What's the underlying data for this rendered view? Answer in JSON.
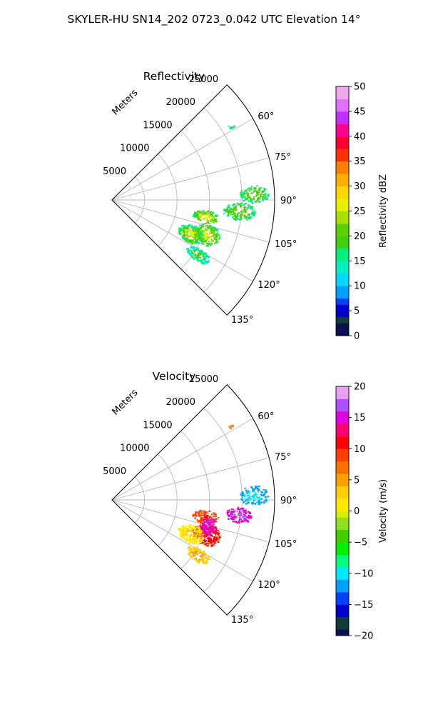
{
  "figure": {
    "suptitle": "SKYLER-HU  SN14_202  0723_0.042 UTC Elevation 14°"
  },
  "chart_data": [
    {
      "type": "ppi-sector",
      "title": "Reflectivity",
      "radial_label": "Meters",
      "radial_ticks": [
        5000,
        10000,
        15000,
        20000,
        25000
      ],
      "range_max_m": 25000,
      "azimuth_range_deg": [
        45,
        135
      ],
      "azimuth_ticks": [
        "60°",
        "75°",
        "90°",
        "105°",
        "120°",
        "135°"
      ],
      "colorbar": {
        "label": "Reflectivity dBZ",
        "range": [
          0,
          50
        ],
        "ticks": [
          "0",
          "5",
          "10",
          "15",
          "20",
          "25",
          "30",
          "35",
          "40",
          "45",
          "50"
        ]
      },
      "echo_regions": [
        {
          "az_range": [
            96,
            104
          ],
          "r_range": [
            12500,
            16500
          ],
          "value_range": [
            15,
            27
          ]
        },
        {
          "az_range": [
            104,
            116
          ],
          "r_range": [
            13000,
            17500
          ],
          "value_range": [
            15,
            25
          ]
        },
        {
          "az_range": [
            107,
            119
          ],
          "r_range": [
            11000,
            15000
          ],
          "value_range": [
            14,
            25
          ]
        },
        {
          "az_range": [
            119,
            126
          ],
          "r_range": [
            13500,
            17500
          ],
          "value_range": [
            12,
            20
          ]
        },
        {
          "az_range": [
            91,
            99
          ],
          "r_range": [
            17000,
            22000
          ],
          "value_range": [
            15,
            21
          ]
        },
        {
          "az_range": [
            84,
            91
          ],
          "r_range": [
            19500,
            24000
          ],
          "value_range": [
            15,
            21
          ]
        },
        {
          "az_range": [
            57,
            59
          ],
          "r_range": [
            21000,
            22000
          ],
          "value_range": [
            15,
            17
          ]
        }
      ]
    },
    {
      "type": "ppi-sector",
      "title": "Velocity",
      "radial_label": "Meters",
      "radial_ticks": [
        5000,
        10000,
        15000,
        20000,
        25000
      ],
      "range_max_m": 25000,
      "azimuth_range_deg": [
        45,
        135
      ],
      "azimuth_ticks": [
        "60°",
        "75°",
        "90°",
        "105°",
        "120°",
        "135°"
      ],
      "colorbar": {
        "label": "Velocity (m/s)",
        "range": [
          -20,
          20
        ],
        "ticks": [
          "−20",
          "−15",
          "−10",
          "−5",
          "0",
          "5",
          "10",
          "15",
          "20"
        ]
      },
      "echo_regions": [
        {
          "az_range": [
            96,
            104
          ],
          "r_range": [
            12500,
            16500
          ],
          "value_range": [
            8,
            10
          ]
        },
        {
          "az_range": [
            104,
            116
          ],
          "r_range": [
            13000,
            17500
          ],
          "value_range": [
            9,
            12
          ]
        },
        {
          "az_range": [
            100,
            110
          ],
          "r_range": [
            14000,
            16500
          ],
          "value_range": [
            13,
            16
          ]
        },
        {
          "az_range": [
            107,
            119
          ],
          "r_range": [
            11000,
            15000
          ],
          "value_range": [
            0,
            3
          ]
        },
        {
          "az_range": [
            119,
            126
          ],
          "r_range": [
            13500,
            17500
          ],
          "value_range": [
            2,
            5
          ]
        },
        {
          "az_range": [
            93,
            100
          ],
          "r_range": [
            17500,
            21500
          ],
          "value_range": [
            13,
            17
          ]
        },
        {
          "az_range": [
            84,
            92
          ],
          "r_range": [
            19500,
            24000
          ],
          "value_range": [
            -13,
            -10
          ]
        },
        {
          "az_range": [
            57,
            59
          ],
          "r_range": [
            21000,
            22000
          ],
          "value_range": [
            5,
            7
          ]
        }
      ]
    }
  ]
}
